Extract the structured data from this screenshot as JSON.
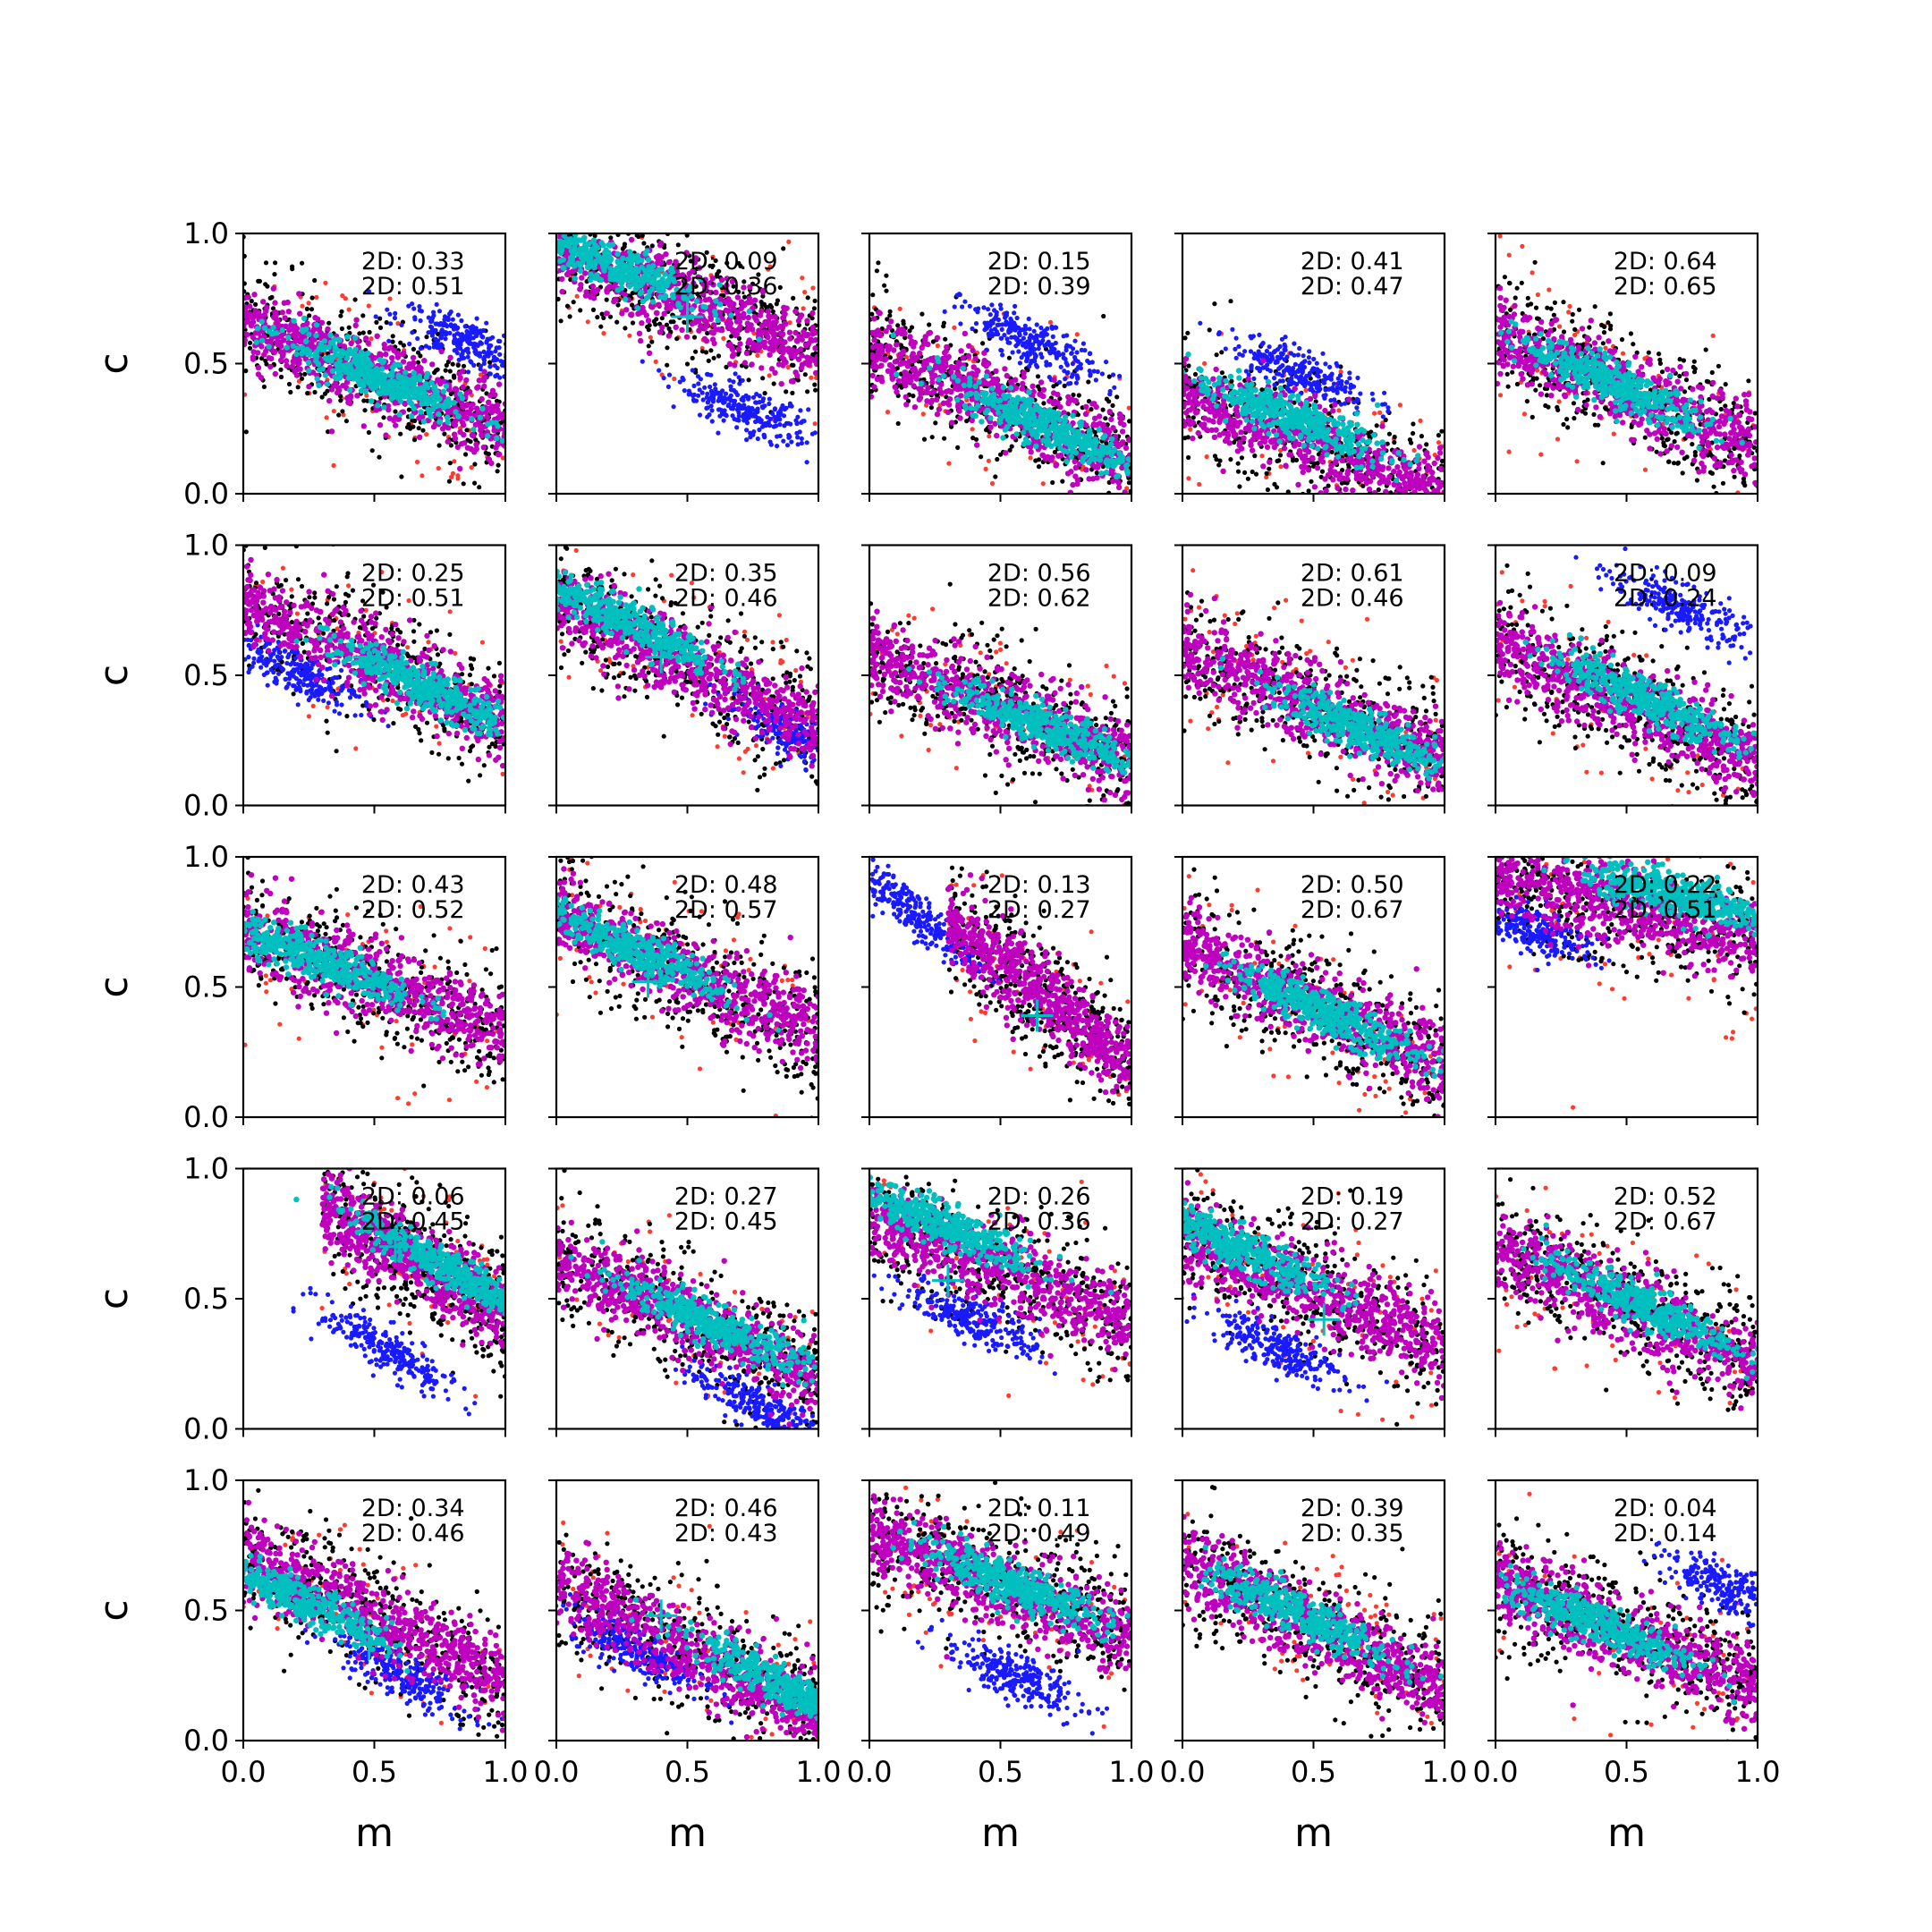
{
  "chart_data": {
    "type": "scatter",
    "layout": {
      "rows": 5,
      "cols": 5
    },
    "xlabel": "m",
    "ylabel": "c",
    "xlim": [
      0,
      1
    ],
    "ylim": [
      0,
      1
    ],
    "xticks": [
      "0.0",
      "0.5",
      "1.0"
    ],
    "yticks": [
      "0.0",
      "0.5",
      "1.0"
    ],
    "grid": false,
    "colors": {
      "outer": "#ff3b30",
      "black": "#000000",
      "blue": "#1a1aff",
      "magenta": "#bf00bf",
      "cyan": "#00bfbf",
      "marker": "#00bfbf"
    },
    "panels": [
      {
        "ann": [
          "2D: 0.33",
          "2D: 0.51"
        ],
        "band": [
          [
            0,
            0.66
          ],
          [
            1,
            0.25
          ]
        ],
        "core": [
          0.5,
          0.45
        ],
        "blue": [
          0.85,
          0.58
        ],
        "marker": null
      },
      {
        "ann": [
          "2D: 0.09",
          "2D: 0.36"
        ],
        "band": [
          [
            0,
            0.93
          ],
          [
            1,
            0.55
          ]
        ],
        "core": [
          0.2,
          0.88
        ],
        "blue": [
          0.72,
          0.32
        ],
        "marker": [
          0.5,
          0.68
        ]
      },
      {
        "ann": [
          "2D: 0.15",
          "2D: 0.39"
        ],
        "band": [
          [
            0,
            0.57
          ],
          [
            1,
            0.12
          ]
        ],
        "core": [
          0.7,
          0.25
        ],
        "blue": [
          0.62,
          0.58
        ],
        "marker": null
      },
      {
        "ann": [
          "2D: 0.41",
          "2D: 0.47"
        ],
        "band": [
          [
            0,
            0.38
          ],
          [
            1,
            0.0
          ]
        ],
        "core": [
          0.4,
          0.3
        ],
        "blue": [
          0.45,
          0.47
        ],
        "marker": null
      },
      {
        "ann": [
          "2D: 0.64",
          "2D: 0.65"
        ],
        "band": [
          [
            0,
            0.62
          ],
          [
            1,
            0.17
          ]
        ],
        "core": [
          0.45,
          0.42
        ],
        "blue": null,
        "marker": null
      },
      {
        "ann": [
          "2D: 0.25",
          "2D: 0.51"
        ],
        "band": [
          [
            0,
            0.78
          ],
          [
            1,
            0.32
          ]
        ],
        "core": [
          0.7,
          0.45
        ],
        "blue": [
          0.2,
          0.52
        ],
        "marker": [
          0.48,
          0.57
        ]
      },
      {
        "ann": [
          "2D: 0.35",
          "2D: 0.46"
        ],
        "band": [
          [
            0,
            0.78
          ],
          [
            1,
            0.3
          ]
        ],
        "core": [
          0.25,
          0.72
        ],
        "blue": [
          0.9,
          0.28
        ],
        "marker": [
          0.4,
          0.57
        ]
      },
      {
        "ann": [
          "2D: 0.56",
          "2D: 0.62"
        ],
        "band": [
          [
            0,
            0.58
          ],
          [
            1,
            0.17
          ]
        ],
        "core": [
          0.68,
          0.3
        ],
        "blue": null,
        "marker": null
      },
      {
        "ann": [
          "2D: 0.61",
          "2D: 0.46"
        ],
        "band": [
          [
            0,
            0.6
          ],
          [
            1,
            0.17
          ]
        ],
        "core": [
          0.7,
          0.28
        ],
        "blue": null,
        "marker": null
      },
      {
        "ann": [
          "2D: 0.09",
          "2D: 0.24"
        ],
        "band": [
          [
            0,
            0.62
          ],
          [
            1,
            0.17
          ]
        ],
        "core": [
          0.55,
          0.42
        ],
        "blue": [
          0.7,
          0.76
        ],
        "marker": null
      },
      {
        "ann": [
          "2D: 0.43",
          "2D: 0.52"
        ],
        "band": [
          [
            0,
            0.72
          ],
          [
            1,
            0.32
          ]
        ],
        "core": [
          0.3,
          0.6
        ],
        "blue": null,
        "marker": null
      },
      {
        "ann": [
          "2D: 0.48",
          "2D: 0.57"
        ],
        "band": [
          [
            0,
            0.78
          ],
          [
            1,
            0.32
          ]
        ],
        "core": [
          0.3,
          0.64
        ],
        "blue": null,
        "marker": [
          0.35,
          0.52
        ]
      },
      {
        "ann": [
          "2D: 0.13",
          "2D: 0.27"
        ],
        "band": [
          [
            0.3,
            0.75
          ],
          [
            1,
            0.2
          ]
        ],
        "core": null,
        "blue": [
          0.15,
          0.8
        ],
        "marker": [
          0.64,
          0.39
        ]
      },
      {
        "ann": [
          "2D: 0.50",
          "2D: 0.67"
        ],
        "band": [
          [
            0,
            0.65
          ],
          [
            1,
            0.2
          ]
        ],
        "core": [
          0.55,
          0.4
        ],
        "blue": null,
        "marker": null
      },
      {
        "ann": [
          "2D: 0.22",
          "2D: 0.51"
        ],
        "band": [
          [
            0,
            0.93
          ],
          [
            1,
            0.67
          ]
        ],
        "core": [
          0.7,
          0.85
        ],
        "blue": [
          0.15,
          0.72
        ],
        "marker": null
      },
      {
        "ann": [
          "2D: 0.06",
          "2D: 0.45"
        ],
        "band": [
          [
            0.3,
            0.85
          ],
          [
            1,
            0.45
          ]
        ],
        "core": [
          0.8,
          0.6
        ],
        "blue": [
          0.55,
          0.3
        ],
        "marker": [
          0.58,
          0.7
        ]
      },
      {
        "ann": [
          "2D: 0.27",
          "2D: 0.45"
        ],
        "band": [
          [
            0,
            0.65
          ],
          [
            1,
            0.2
          ]
        ],
        "core": [
          0.6,
          0.4
        ],
        "blue": [
          0.75,
          0.1
        ],
        "marker": null
      },
      {
        "ann": [
          "2D: 0.26",
          "2D: 0.36"
        ],
        "band": [
          [
            0,
            0.82
          ],
          [
            1,
            0.4
          ]
        ],
        "core": [
          0.28,
          0.78
        ],
        "blue": [
          0.4,
          0.42
        ],
        "marker": [
          0.3,
          0.57
        ]
      },
      {
        "ann": [
          "2D: 0.19",
          "2D: 0.27"
        ],
        "band": [
          [
            0,
            0.75
          ],
          [
            1,
            0.3
          ]
        ],
        "core": [
          0.2,
          0.7
        ],
        "blue": [
          0.35,
          0.32
        ],
        "marker": [
          0.54,
          0.42
        ]
      },
      {
        "ann": [
          "2D: 0.52",
          "2D: 0.67"
        ],
        "band": [
          [
            0,
            0.7
          ],
          [
            1,
            0.25
          ]
        ],
        "core": [
          0.55,
          0.48
        ],
        "blue": null,
        "marker": null
      },
      {
        "ann": [
          "2D: 0.34",
          "2D: 0.46"
        ],
        "band": [
          [
            0,
            0.72
          ],
          [
            1,
            0.22
          ]
        ],
        "core": [
          0.2,
          0.55
        ],
        "blue": [
          0.6,
          0.25
        ],
        "marker": [
          0.48,
          0.37
        ]
      },
      {
        "ann": [
          "2D: 0.46",
          "2D: 0.43"
        ],
        "band": [
          [
            0,
            0.6
          ],
          [
            1,
            0.1
          ]
        ],
        "core": [
          0.85,
          0.22
        ],
        "blue": [
          0.3,
          0.35
        ],
        "marker": [
          0.4,
          0.48
        ]
      },
      {
        "ann": [
          "2D: 0.11",
          "2D: 0.49"
        ],
        "band": [
          [
            0,
            0.8
          ],
          [
            1,
            0.4
          ]
        ],
        "core": [
          0.55,
          0.6
        ],
        "blue": [
          0.55,
          0.25
        ],
        "marker": null
      },
      {
        "ann": [
          "2D: 0.39",
          "2D: 0.35"
        ],
        "band": [
          [
            0,
            0.68
          ],
          [
            1,
            0.2
          ]
        ],
        "core": [
          0.45,
          0.48
        ],
        "blue": null,
        "marker": null
      },
      {
        "ann": [
          "2D: 0.04",
          "2D: 0.14"
        ],
        "band": [
          [
            0,
            0.62
          ],
          [
            1,
            0.2
          ]
        ],
        "core": [
          0.4,
          0.45
        ],
        "blue": [
          0.9,
          0.58
        ],
        "marker": null
      }
    ]
  }
}
